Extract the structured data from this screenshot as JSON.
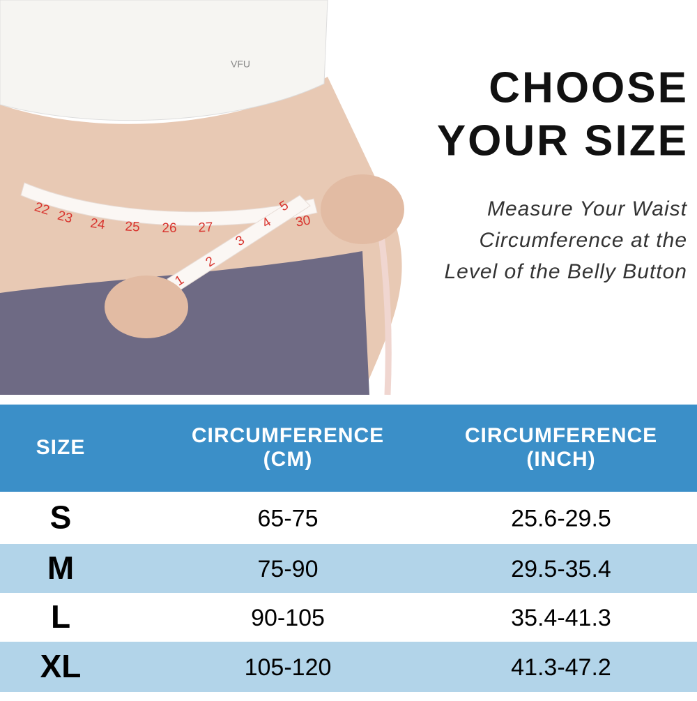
{
  "header": {
    "title": [
      "CHOOSE",
      "YOUR SIZE"
    ],
    "subtitle": [
      "Measure Your Waist",
      "Circumference at the",
      "Level of the Belly Button"
    ]
  },
  "photo": {
    "logo": "VFU",
    "tape_marks": [
      "22",
      "23",
      "24",
      "25",
      "26",
      "27",
      "30",
      "1",
      "2",
      "3",
      "4",
      "5"
    ]
  },
  "table": {
    "columns": [
      [
        "SIZE"
      ],
      [
        "CIRCUMFERENCE",
        "(CM)"
      ],
      [
        "CIRCUMFERENCE",
        "(INCH)"
      ]
    ],
    "rows": [
      [
        "S",
        "65-75",
        "25.6-29.5"
      ],
      [
        "M",
        "75-90",
        "29.5-35.4"
      ],
      [
        "L",
        "90-105",
        "35.4-41.3"
      ],
      [
        "XL",
        "105-120",
        "41.3-47.2"
      ]
    ]
  }
}
